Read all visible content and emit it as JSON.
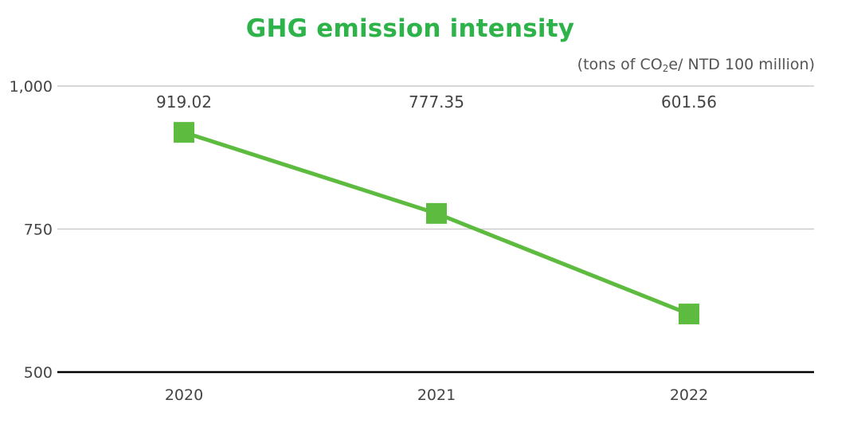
{
  "chart_data": {
    "type": "line",
    "title": "GHG emission intensity",
    "unit_label": {
      "prefix": "(tons of CO",
      "subscript": "2",
      "suffix": "e/ NTD 100 million)"
    },
    "categories": [
      "2020",
      "2021",
      "2022"
    ],
    "series": [
      {
        "values": [
          919.02,
          777.35,
          601.56
        ],
        "data_labels": [
          "919.02",
          "777.35",
          "601.56"
        ],
        "color": "#5dbb3f",
        "marker": "square"
      }
    ],
    "ylim": [
      500,
      1000
    ],
    "yticks": [
      500,
      750,
      1000
    ],
    "ytick_labels": [
      "500",
      "750",
      "1,000"
    ],
    "grid": true,
    "legend": "none",
    "colors": {
      "title": "#2db34a",
      "line": "#5dbb3f",
      "grid": "#cccccc",
      "baseline": "#000000",
      "text": "#444444"
    }
  }
}
